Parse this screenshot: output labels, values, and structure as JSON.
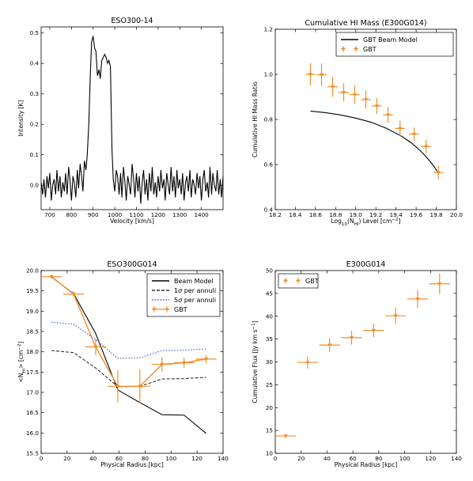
{
  "chart_data": [
    {
      "type": "line",
      "title": "ESO300-14",
      "xlabel": "Velocity [km/s]",
      "ylabel": "Intensity [K]",
      "xlim": [
        660,
        1500
      ],
      "ylim": [
        -0.08,
        0.52
      ],
      "xticks": [
        "700",
        "800",
        "900",
        "1000",
        "1100",
        "1200",
        "1300",
        "1400"
      ],
      "yticks": [
        "0.0",
        "0.1",
        "0.2",
        "0.3",
        "0.4",
        "0.5"
      ],
      "series": [
        {
          "color": "#000000",
          "x": [
            660,
            667,
            673,
            680,
            687,
            693,
            700,
            707,
            713,
            720,
            727,
            733,
            740,
            747,
            753,
            760,
            767,
            773,
            780,
            787,
            793,
            800,
            807,
            813,
            820,
            827,
            833,
            840,
            847,
            853,
            860,
            867,
            873,
            880,
            887,
            893,
            900,
            907,
            913,
            920,
            927,
            933,
            940,
            947,
            953,
            960,
            967,
            973,
            980,
            987,
            993,
            1000,
            1007,
            1013,
            1020,
            1027,
            1033,
            1040,
            1047,
            1053,
            1060,
            1067,
            1073,
            1080,
            1087,
            1093,
            1100,
            1107,
            1113,
            1120,
            1127,
            1133,
            1140,
            1147,
            1153,
            1160,
            1167,
            1173,
            1180,
            1187,
            1193,
            1200,
            1207,
            1213,
            1220,
            1227,
            1233,
            1240,
            1247,
            1253,
            1260,
            1267,
            1273,
            1280,
            1287,
            1293,
            1300,
            1307,
            1313,
            1320,
            1327,
            1333,
            1340,
            1347,
            1353,
            1360,
            1367,
            1373,
            1380,
            1387,
            1393,
            1400,
            1407,
            1413,
            1420,
            1427,
            1433,
            1440,
            1447,
            1453,
            1460,
            1467,
            1473,
            1480,
            1487,
            1493,
            1500
          ],
          "y": [
            0.01,
            -0.03,
            0.02,
            -0.04,
            0.03,
            -0.01,
            0.04,
            -0.05,
            0.0,
            0.02,
            -0.03,
            0.05,
            -0.02,
            0.03,
            -0.04,
            0.01,
            -0.02,
            0.04,
            -0.03,
            0.06,
            0.02,
            -0.05,
            0.03,
            0.01,
            -0.04,
            0.05,
            -0.01,
            0.07,
            0.03,
            -0.02,
            0.08,
            0.05,
            0.1,
            0.2,
            0.36,
            0.47,
            0.49,
            0.45,
            0.44,
            0.36,
            0.38,
            0.35,
            0.41,
            0.42,
            0.43,
            0.42,
            0.4,
            0.41,
            0.39,
            0.12,
            0.02,
            -0.02,
            0.05,
            0.03,
            -0.03,
            0.04,
            -0.04,
            0.06,
            0.01,
            -0.05,
            0.03,
            0.0,
            -0.03,
            0.07,
            0.02,
            -0.04,
            0.04,
            -0.02,
            0.03,
            -0.06,
            0.01,
            0.05,
            -0.03,
            0.02,
            -0.05,
            0.04,
            -0.02,
            0.06,
            -0.03,
            0.01,
            -0.04,
            0.03,
            -0.02,
            0.05,
            -0.01,
            0.02,
            -0.05,
            0.04,
            0.0,
            -0.03,
            0.06,
            -0.02,
            0.03,
            -0.04,
            0.05,
            -0.01,
            0.02,
            -0.03,
            0.04,
            -0.05,
            0.01,
            0.03,
            -0.02,
            0.05,
            -0.04,
            0.02,
            0.0,
            -0.03,
            0.04,
            -0.01,
            0.03,
            -0.05,
            0.02,
            0.05,
            -0.02,
            0.01,
            -0.04,
            0.06,
            -0.03,
            0.04,
            0.0,
            -0.02,
            0.05,
            -0.03,
            0.02,
            -0.04,
            0.03
          ]
        }
      ]
    },
    {
      "type": "line",
      "title": "Cumulative HI Mass (E300G014)",
      "xlabel": "Log10(NHI) Level [cm^-2]",
      "ylabel": "Cumulative HI Mass Ratio",
      "xlim": [
        18.2,
        20.0
      ],
      "ylim": [
        0.4,
        1.2
      ],
      "xticks": [
        "18.2",
        "18.4",
        "18.6",
        "18.8",
        "19.0",
        "19.2",
        "19.4",
        "19.6",
        "19.8",
        "20.0"
      ],
      "yticks": [
        "0.4",
        "0.6",
        "0.8",
        "1.0",
        "1.2"
      ],
      "legend": [
        "GBT Beam Model",
        "GBT"
      ],
      "legend_loc": "top-right",
      "series": [
        {
          "name": "GBT Beam Model",
          "color": "#000000",
          "x": [
            18.55,
            18.7,
            18.85,
            19.0,
            19.15,
            19.3,
            19.45,
            19.55,
            19.65,
            19.72,
            19.78,
            19.82
          ],
          "y": [
            0.837,
            0.83,
            0.82,
            0.806,
            0.788,
            0.762,
            0.727,
            0.697,
            0.658,
            0.624,
            0.59,
            0.562
          ]
        },
        {
          "name": "GBT",
          "color": "#f28e2b",
          "x": [
            18.55,
            18.66,
            18.77,
            18.88,
            18.99,
            19.1,
            19.21,
            19.32,
            19.44,
            19.58,
            19.7,
            19.82
          ],
          "y": [
            1.0,
            0.998,
            0.945,
            0.92,
            0.91,
            0.888,
            0.86,
            0.82,
            0.76,
            0.735,
            0.68,
            0.565
          ],
          "yerr": [
            0.05,
            0.05,
            0.045,
            0.04,
            0.04,
            0.04,
            0.035,
            0.035,
            0.035,
            0.03,
            0.03,
            0.03
          ],
          "xerr": [
            0.05,
            0.05,
            0.05,
            0.05,
            0.05,
            0.05,
            0.05,
            0.05,
            0.05,
            0.05,
            0.05,
            0.05
          ]
        }
      ]
    },
    {
      "type": "line",
      "title": "ESO300G014",
      "xlabel": "Physical Radius [kpc]",
      "ylabel": "<NHI> [cm^-2]",
      "xlim": [
        0,
        140
      ],
      "ylim": [
        15.5,
        20.0
      ],
      "xticks": [
        "0",
        "20",
        "40",
        "60",
        "80",
        "100",
        "120",
        "140"
      ],
      "yticks": [
        "15.5",
        "16.0",
        "16.5",
        "17.0",
        "17.5",
        "18.0",
        "18.5",
        "19.0",
        "19.5",
        "20.0"
      ],
      "legend": [
        "Beam Model",
        "1σ per annuli",
        "5σ per annuli",
        "GBT"
      ],
      "legend_loc": "top-right",
      "series": [
        {
          "name": "Beam Model",
          "color": "#000000",
          "x": [
            8,
            25,
            42,
            59,
            76,
            93,
            110,
            127
          ],
          "y": [
            19.84,
            19.43,
            18.45,
            17.06,
            16.75,
            16.45,
            16.44,
            15.99
          ]
        },
        {
          "name": "1σ per annuli",
          "color": "#333333",
          "dash": "4,2",
          "x": [
            8,
            25,
            42,
            59,
            76,
            93,
            110,
            127
          ],
          "y": [
            18.03,
            17.98,
            17.6,
            17.14,
            17.15,
            17.33,
            17.34,
            17.37
          ]
        },
        {
          "name": "5σ per annuli",
          "color": "#3b55d9",
          "dash": "1.5,2",
          "x": [
            8,
            25,
            42,
            59,
            76,
            93,
            110,
            127
          ],
          "y": [
            18.73,
            18.68,
            18.3,
            17.84,
            17.85,
            18.03,
            18.04,
            18.07
          ]
        },
        {
          "name": "GBT",
          "color": "#f28e2b",
          "x": [
            8,
            25,
            42,
            59,
            76,
            93,
            110,
            127
          ],
          "y": [
            19.85,
            19.42,
            18.12,
            17.15,
            17.15,
            17.69,
            17.73,
            17.82
          ],
          "yerr": [
            0.05,
            0.07,
            0.2,
            0.4,
            0.42,
            0.18,
            0.12,
            0.1
          ],
          "xerr": [
            8,
            8,
            8,
            8,
            8,
            8,
            8,
            8
          ]
        }
      ]
    },
    {
      "type": "scatter",
      "title": "E300G014",
      "xlabel": "Physical Radius [kpc]",
      "ylabel": "Cumulative Flux [Jy km s^-1]",
      "xlim": [
        0,
        140
      ],
      "ylim": [
        10,
        50
      ],
      "xticks": [
        "0",
        "20",
        "40",
        "60",
        "80",
        "100",
        "120",
        "140"
      ],
      "yticks": [
        "10",
        "15",
        "20",
        "25",
        "30",
        "35",
        "40",
        "45",
        "50"
      ],
      "legend": [
        "GBT"
      ],
      "legend_loc": "top-left",
      "series": [
        {
          "name": "GBT",
          "color": "#f28e2b",
          "x": [
            8,
            25,
            42,
            59,
            76,
            93,
            110,
            127
          ],
          "y": [
            13.8,
            29.9,
            33.7,
            35.3,
            36.9,
            40.1,
            43.8,
            47.1
          ],
          "yerr": [
            0.4,
            1.3,
            1.5,
            1.5,
            1.5,
            1.8,
            2.0,
            2.2
          ],
          "xerr": [
            8,
            8,
            8,
            8,
            8,
            8,
            8,
            8
          ]
        }
      ]
    }
  ]
}
